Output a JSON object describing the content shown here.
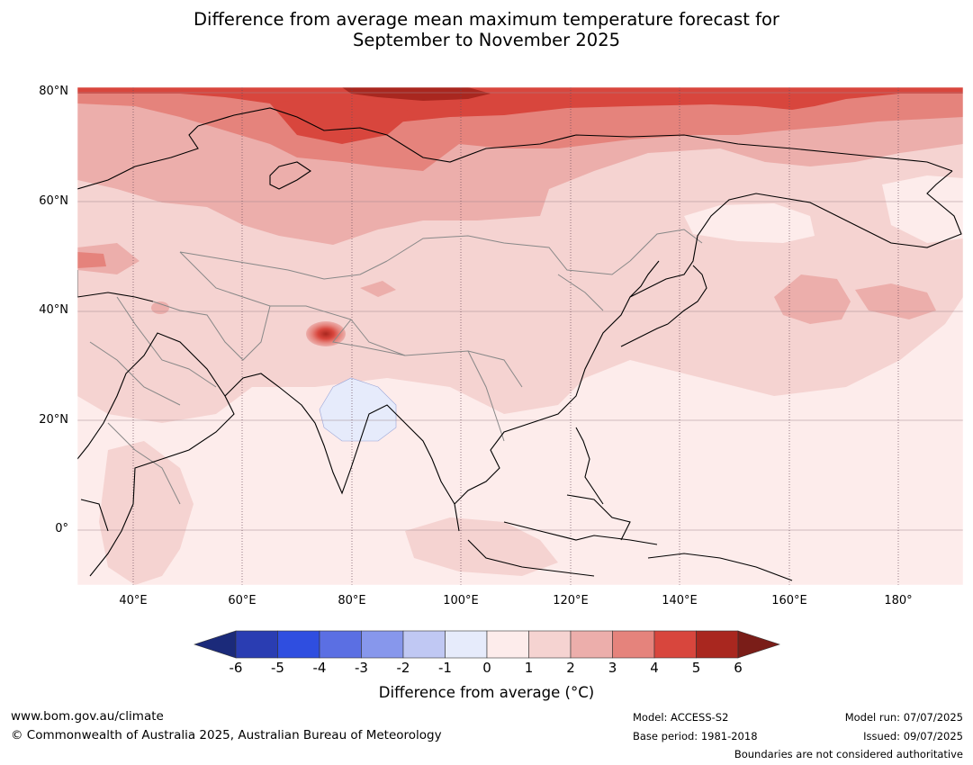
{
  "title": {
    "line1": "Difference from average mean maximum temperature forecast for",
    "line2": "September to November 2025"
  },
  "map": {
    "lat_labels": [
      "80°N",
      "60°N",
      "40°N",
      "20°N",
      "0°"
    ],
    "lon_labels": [
      "40°E",
      "60°E",
      "80°E",
      "100°E",
      "120°E",
      "140°E",
      "160°E",
      "180°"
    ],
    "lat_range": [
      -10,
      81
    ],
    "lon_range": [
      30,
      192
    ]
  },
  "colorbar": {
    "labels": [
      "-6",
      "-5",
      "-4",
      "-3",
      "-2",
      "-1",
      "0",
      "1",
      "2",
      "3",
      "4",
      "5",
      "6"
    ],
    "colors": [
      "#1b2a7a",
      "#2a3db2",
      "#2f4ee0",
      "#5b6fe3",
      "#8797ec",
      "#c0c8f3",
      "#e6ebfb",
      "#fdeceb",
      "#f5d3d1",
      "#ecaeab",
      "#e5837c",
      "#d8463d",
      "#a9271f",
      "#7a1d18"
    ],
    "title": "Difference from average (°C)"
  },
  "footer": {
    "website": "www.bom.gov.au/climate",
    "copyright": "© Commonwealth of Australia 2025, Australian Bureau of Meteorology",
    "model": "Model: ACCESS-S2",
    "base_period": "Base period: 1981-2018",
    "model_run": "Model run: 07/07/2025",
    "issued": "Issued: 09/07/2025",
    "disclaimer": "Boundaries are not considered authoritative"
  }
}
